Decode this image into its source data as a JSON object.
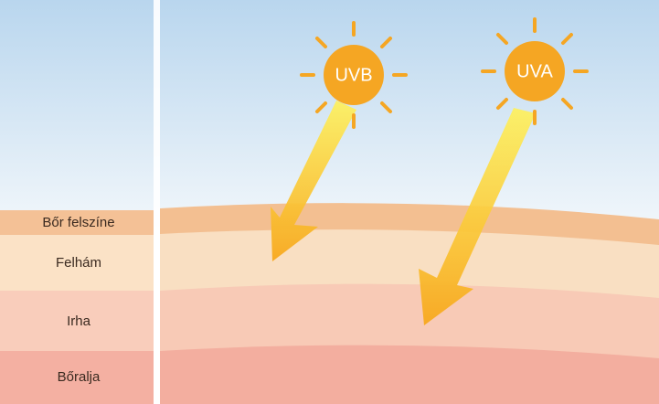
{
  "suns": [
    {
      "label": "UVB"
    },
    {
      "label": "UVA"
    }
  ],
  "layers": [
    {
      "label": "Bőr felszíne"
    },
    {
      "label": "Felhám"
    },
    {
      "label": "Irha"
    },
    {
      "label": "Bőralja"
    }
  ]
}
